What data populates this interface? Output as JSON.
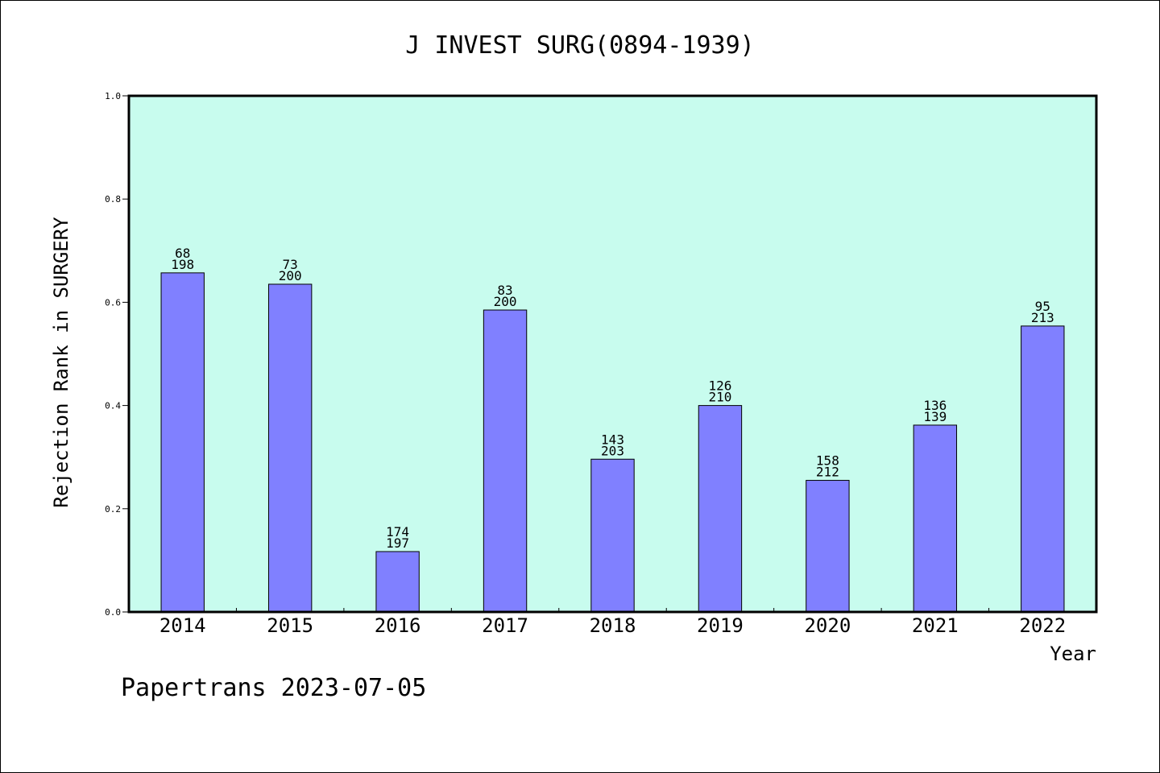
{
  "chart_data": {
    "type": "bar",
    "title": "J INVEST SURG(0894-1939)",
    "xlabel": "Year",
    "ylabel": "Rejection Rank in SURGERY",
    "ylim": [
      0,
      1.0
    ],
    "yticks": [
      "0.0",
      "0.2",
      "0.4",
      "0.6",
      "0.8",
      "1.0"
    ],
    "grid": false,
    "categories": [
      "2014",
      "2015",
      "2016",
      "2017",
      "2018",
      "2019",
      "2020",
      "2021",
      "2022"
    ],
    "values": [
      0.657,
      0.635,
      0.117,
      0.585,
      0.296,
      0.4,
      0.255,
      0.362,
      0.554
    ],
    "labels_top": [
      "68",
      "73",
      "174",
      "83",
      "143",
      "126",
      "158",
      "136",
      "95"
    ],
    "labels_bottom": [
      "198",
      "200",
      "197",
      "200",
      "203",
      "210",
      "212",
      "139",
      "213"
    ],
    "colors": {
      "plot_background": "#c8fcee",
      "bar_fill": "#8080ff",
      "bar_edge": "#000000"
    }
  },
  "footer": {
    "credit": "Papertrans 2023-07-05"
  }
}
